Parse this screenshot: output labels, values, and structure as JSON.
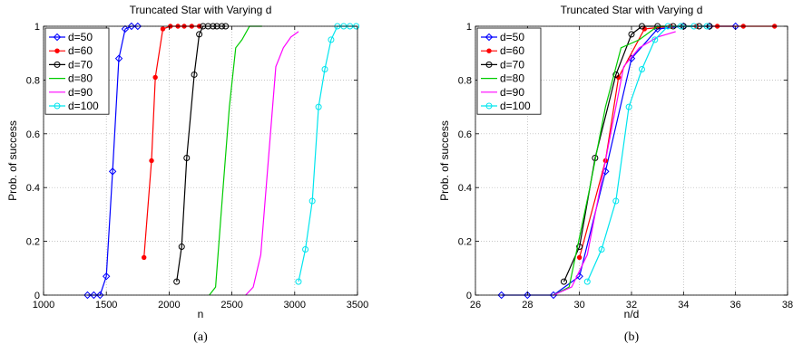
{
  "chart_data": [
    {
      "type": "line",
      "title": "Truncated Star with Varying d",
      "xlabel": "n",
      "ylabel": "Prob. of success",
      "caption": "(a)",
      "xlim": [
        1000,
        3500
      ],
      "ylim": [
        0,
        1
      ],
      "xticks": [
        1000,
        1500,
        2000,
        2500,
        3000,
        3500
      ],
      "yticks": [
        0,
        0.2,
        0.4,
        0.6,
        0.8,
        1
      ],
      "xtick_labels": [
        "1000",
        "1500",
        "2000",
        "2500",
        "3000",
        "3500"
      ],
      "ytick_labels": [
        "0",
        "0.2",
        "0.4",
        "0.6",
        "0.8",
        "1"
      ],
      "grid": true,
      "legend_position": "top-left",
      "series": [
        {
          "name": "d=50",
          "color": "#0000ff",
          "marker": "diamond",
          "x": [
            1350,
            1400,
            1450,
            1500,
            1550,
            1600,
            1650,
            1700,
            1750
          ],
          "y": [
            0,
            0,
            0,
            0.07,
            0.46,
            0.88,
            0.99,
            1,
            1
          ]
        },
        {
          "name": "d=60",
          "color": "#ff0000",
          "marker": "dot",
          "x": [
            1800,
            1860,
            1890,
            1950,
            2010,
            2070,
            2120,
            2180,
            2240
          ],
          "y": [
            0.14,
            0.5,
            0.81,
            0.99,
            1,
            1,
            1,
            1,
            1
          ]
        },
        {
          "name": "d=70",
          "color": "#000000",
          "marker": "circle",
          "x": [
            2060,
            2100,
            2140,
            2200,
            2240,
            2270,
            2310,
            2350,
            2380,
            2420,
            2450
          ],
          "y": [
            0.05,
            0.18,
            0.51,
            0.82,
            0.97,
            1,
            1,
            1,
            1,
            1,
            1
          ]
        },
        {
          "name": "d=80",
          "color": "#00cc00",
          "marker": "none",
          "x": [
            2320,
            2370,
            2430,
            2480,
            2530,
            2580,
            2640,
            2690,
            2740
          ],
          "y": [
            0,
            0.03,
            0.4,
            0.7,
            0.92,
            0.95,
            1,
            1,
            1
          ]
        },
        {
          "name": "d=90",
          "color": "#ff00ff",
          "marker": "none",
          "x": [
            2610,
            2670,
            2730,
            2790,
            2850,
            2910,
            2970,
            3030
          ],
          "y": [
            0,
            0.03,
            0.15,
            0.5,
            0.85,
            0.92,
            0.96,
            0.98
          ]
        },
        {
          "name": "d=100",
          "color": "#00e5ee",
          "marker": "circle",
          "x": [
            3030,
            3085,
            3140,
            3190,
            3240,
            3290,
            3340,
            3390,
            3440,
            3490
          ],
          "y": [
            0.05,
            0.17,
            0.35,
            0.7,
            0.84,
            0.95,
            1,
            1,
            1,
            1
          ]
        }
      ]
    },
    {
      "type": "line",
      "title": "Truncated Star with Varying d",
      "xlabel": "n/d",
      "ylabel": "Prob. of success",
      "caption": "(b)",
      "xlim": [
        26,
        38
      ],
      "ylim": [
        0,
        1
      ],
      "xticks": [
        26,
        28,
        30,
        32,
        34,
        36,
        38
      ],
      "yticks": [
        0,
        0.2,
        0.4,
        0.6,
        0.8,
        1
      ],
      "xtick_labels": [
        "26",
        "28",
        "30",
        "32",
        "34",
        "36",
        "38"
      ],
      "ytick_labels": [
        "0",
        "0.2",
        "0.4",
        "0.6",
        "0.8",
        "1"
      ],
      "grid": true,
      "legend_position": "top-left",
      "series": [
        {
          "name": "d=50",
          "color": "#0000ff",
          "marker": "diamond",
          "x": [
            27,
            28,
            29,
            30,
            31,
            32,
            33,
            34,
            35,
            36
          ],
          "y": [
            0,
            0,
            0,
            0.07,
            0.46,
            0.88,
            0.99,
            1,
            1,
            1
          ]
        },
        {
          "name": "d=60",
          "color": "#ff0000",
          "marker": "dot",
          "x": [
            30,
            31,
            31.5,
            32.5,
            33.5,
            34.5,
            35.3,
            36.3,
            37.5
          ],
          "y": [
            0.14,
            0.5,
            0.81,
            0.99,
            1,
            1,
            1,
            1,
            1
          ]
        },
        {
          "name": "d=70",
          "color": "#000000",
          "marker": "circle",
          "x": [
            29.4,
            30,
            30.6,
            31.4,
            32,
            32.4,
            33,
            33.6,
            34,
            34.6,
            35
          ],
          "y": [
            0.05,
            0.18,
            0.51,
            0.82,
            0.97,
            1,
            1,
            1,
            1,
            1,
            1
          ]
        },
        {
          "name": "d=80",
          "color": "#00cc00",
          "marker": "none",
          "x": [
            29,
            29.6,
            30.4,
            31,
            31.6,
            32.3,
            33,
            33.6,
            34.3
          ],
          "y": [
            0,
            0.03,
            0.4,
            0.7,
            0.92,
            0.95,
            1,
            1,
            1
          ]
        },
        {
          "name": "d=90",
          "color": "#ff00ff",
          "marker": "none",
          "x": [
            29,
            29.7,
            30.3,
            31,
            31.7,
            32.3,
            33,
            33.7
          ],
          "y": [
            0,
            0.03,
            0.15,
            0.5,
            0.85,
            0.92,
            0.96,
            0.98
          ]
        },
        {
          "name": "d=100",
          "color": "#00e5ee",
          "marker": "circle",
          "x": [
            30.3,
            30.85,
            31.4,
            31.9,
            32.4,
            32.9,
            33.4,
            33.9,
            34.4,
            34.9
          ],
          "y": [
            0.05,
            0.17,
            0.35,
            0.7,
            0.84,
            0.95,
            1,
            1,
            1,
            1
          ]
        }
      ]
    }
  ]
}
